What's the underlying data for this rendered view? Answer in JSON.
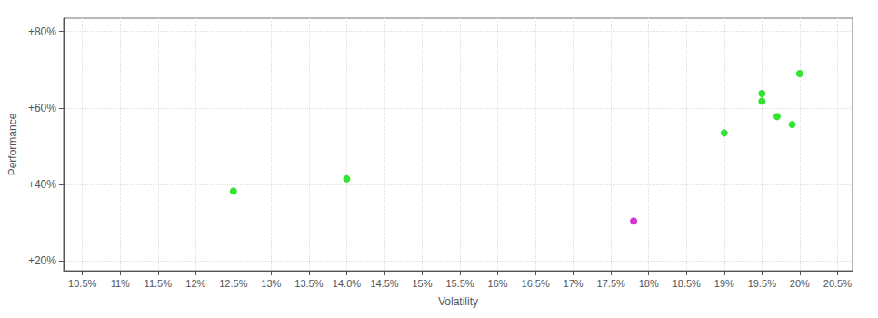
{
  "chart_data": {
    "type": "scatter",
    "xlabel": "Volatility",
    "ylabel": "Performance",
    "xlim": [
      0.1025,
      0.207
    ],
    "ylim": [
      0.175,
      0.835
    ],
    "xticks": [
      {
        "value": 0.105,
        "label": "10.5%"
      },
      {
        "value": 0.11,
        "label": "11%"
      },
      {
        "value": 0.115,
        "label": "11.5%"
      },
      {
        "value": 0.12,
        "label": "12%"
      },
      {
        "value": 0.125,
        "label": "12.5%"
      },
      {
        "value": 0.13,
        "label": "13%"
      },
      {
        "value": 0.135,
        "label": "13.5%"
      },
      {
        "value": 0.14,
        "label": "14.0%"
      },
      {
        "value": 0.145,
        "label": "14.5%"
      },
      {
        "value": 0.15,
        "label": "15%"
      },
      {
        "value": 0.155,
        "label": "15.5%"
      },
      {
        "value": 0.16,
        "label": "16%"
      },
      {
        "value": 0.165,
        "label": "16.5%"
      },
      {
        "value": 0.17,
        "label": "17%"
      },
      {
        "value": 0.175,
        "label": "17.5%"
      },
      {
        "value": 0.18,
        "label": "18%"
      },
      {
        "value": 0.185,
        "label": "18.5%"
      },
      {
        "value": 0.19,
        "label": "19%"
      },
      {
        "value": 0.195,
        "label": "19.5%"
      },
      {
        "value": 0.2,
        "label": "20%"
      },
      {
        "value": 0.205,
        "label": "20.5%"
      }
    ],
    "yticks": [
      {
        "value": 0.2,
        "label": "+20%"
      },
      {
        "value": 0.4,
        "label": "+40%"
      },
      {
        "value": 0.6,
        "label": "+60%"
      },
      {
        "value": 0.8,
        "label": "+80%"
      }
    ],
    "grid": true,
    "series": [
      {
        "color": "#00dd00",
        "x": [
          0.125,
          0.14,
          0.19,
          0.195,
          0.195,
          0.197,
          0.199,
          0.2
        ],
        "values": [
          0.383,
          0.415,
          0.535,
          0.638,
          0.618,
          0.578,
          0.557,
          0.69
        ]
      },
      {
        "color": "#cc00cc",
        "x": [
          0.178
        ],
        "values": [
          0.305
        ]
      }
    ]
  }
}
